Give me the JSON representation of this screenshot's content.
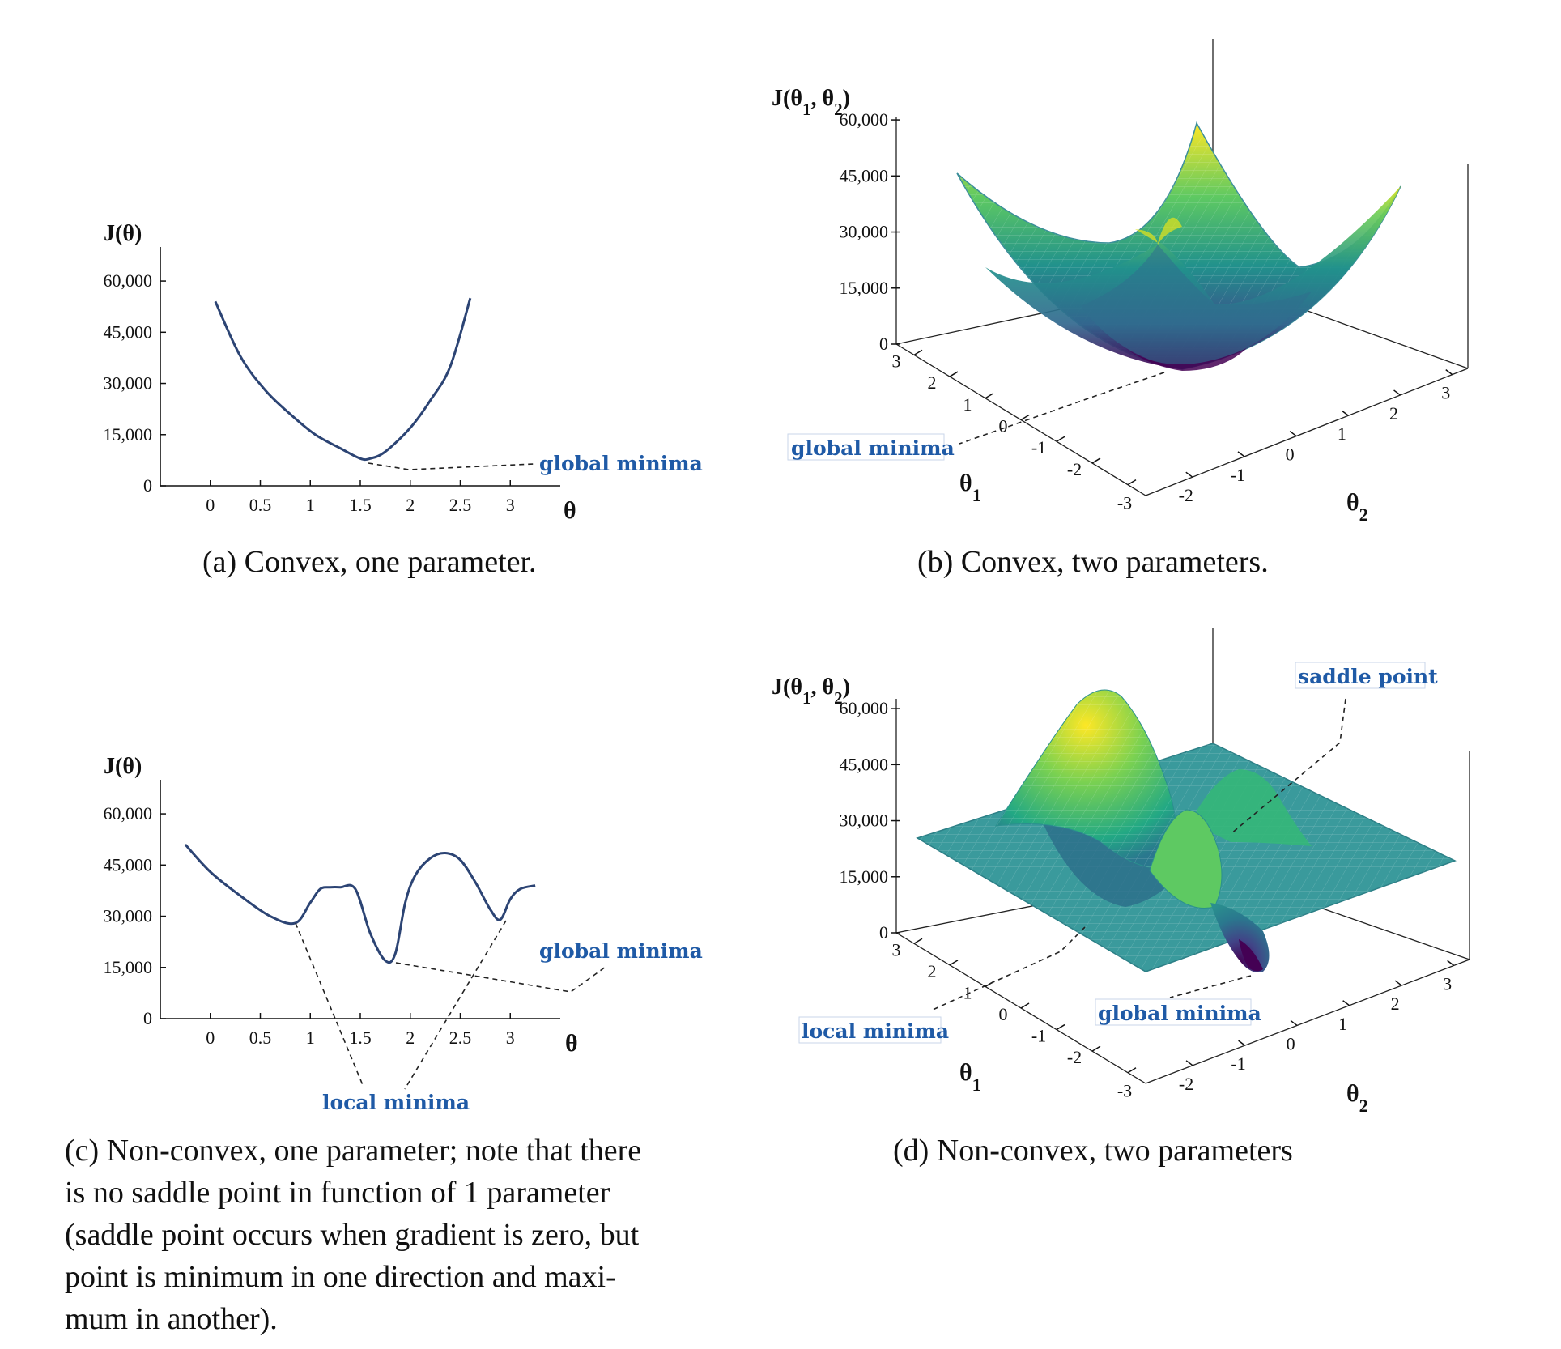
{
  "captions": {
    "a": "(a) Convex, one parameter.",
    "b": "(b) Convex, two parameters.",
    "c": [
      "(c) Non-convex, one parameter; note that there",
      "is no saddle point in function of 1 parameter",
      "(saddle point occurs when gradient is zero, but",
      "point is minimum in one direction and maxi-",
      "mum in another)."
    ],
    "d": "(d) Non-convex, two parameters"
  },
  "annotations": {
    "global_minima": "global minima",
    "local_minima": "local minima",
    "saddle_point": "saddle point"
  },
  "colors": {
    "curve": "#2c4474",
    "annotation": "#1f5aa6",
    "surface_low": "#440154",
    "surface_mid": "#21918c",
    "surface_high": "#fde725"
  },
  "chart_data": [
    {
      "id": "a",
      "type": "line",
      "ylabel": "J(θ)",
      "xlabel": "θ",
      "xticks": [
        "0",
        "0.5",
        "1",
        "1.5",
        "2",
        "2.5",
        "3"
      ],
      "yticks": [
        "0",
        "15,000",
        "30,000",
        "45,000",
        "60,000"
      ],
      "xlim": [
        -0.5,
        3.5
      ],
      "ylim": [
        0,
        65000
      ],
      "x": [
        0.05,
        0.3,
        0.55,
        0.8,
        1.05,
        1.3,
        1.5,
        1.6,
        1.75,
        2.0,
        2.2,
        2.4,
        2.6
      ],
      "y": [
        54000,
        38000,
        28000,
        21000,
        15000,
        11000,
        8000,
        8000,
        10000,
        17000,
        25000,
        35000,
        55000
      ],
      "annotations": [
        {
          "text": "global minima",
          "x": 1.55,
          "y": 8000
        }
      ]
    },
    {
      "id": "b",
      "type": "surface",
      "surface": "convex bowl",
      "zlabel": "J(θ1, θ2)",
      "xlabel": "θ1",
      "ylabel": "θ2",
      "zticks": [
        "0",
        "15,000",
        "30,000",
        "45,000",
        "60,000"
      ],
      "xticks": [
        "3",
        "2",
        "1",
        "0",
        "-1",
        "-2",
        "-3"
      ],
      "yticks": [
        "-2",
        "-1",
        "0",
        "1",
        "2",
        "3"
      ],
      "zlim": [
        0,
        65000
      ],
      "annotations": [
        {
          "text": "global minima",
          "x": 0,
          "y": 0,
          "z": 0
        }
      ]
    },
    {
      "id": "c",
      "type": "line",
      "ylabel": "J(θ)",
      "xlabel": "θ",
      "xticks": [
        "0",
        "0.5",
        "1",
        "1.5",
        "2",
        "2.5",
        "3"
      ],
      "yticks": [
        "0",
        "15,000",
        "30,000",
        "45,000",
        "60,000"
      ],
      "xlim": [
        -0.5,
        3.5
      ],
      "ylim": [
        0,
        65000
      ],
      "x": [
        -0.25,
        0.0,
        0.3,
        0.6,
        0.85,
        1.0,
        1.1,
        1.2,
        1.3,
        1.45,
        1.6,
        1.75,
        1.85,
        1.95,
        2.05,
        2.2,
        2.35,
        2.5,
        2.65,
        2.8,
        2.9,
        3.0,
        3.1,
        3.25
      ],
      "y": [
        51000,
        43000,
        36000,
        30000,
        28000,
        34000,
        38000,
        38500,
        38500,
        38000,
        25000,
        17000,
        19000,
        34000,
        42000,
        47000,
        48500,
        46500,
        40000,
        32000,
        29000,
        35000,
        38000,
        39000
      ],
      "annotations": [
        {
          "text": "global minima",
          "x": 1.8,
          "y": 17000
        },
        {
          "text": "local minima",
          "x": 0.85,
          "y": 28000
        },
        {
          "text": "local minima",
          "x": 2.9,
          "y": 29000
        }
      ]
    },
    {
      "id": "d",
      "type": "surface",
      "surface": "non-convex with peaks, saddle point and minima",
      "zlabel": "J(θ1, θ2)",
      "xlabel": "θ1",
      "ylabel": "θ2",
      "zticks": [
        "0",
        "15,000",
        "30,000",
        "45,000",
        "60,000"
      ],
      "xticks": [
        "3",
        "2",
        "1",
        "0",
        "-1",
        "-2",
        "-3"
      ],
      "yticks": [
        "-2",
        "-1",
        "0",
        "1",
        "2",
        "3"
      ],
      "zlim": [
        0,
        65000
      ],
      "annotations": [
        {
          "text": "saddle point"
        },
        {
          "text": "global minima"
        },
        {
          "text": "local minima"
        }
      ]
    }
  ]
}
